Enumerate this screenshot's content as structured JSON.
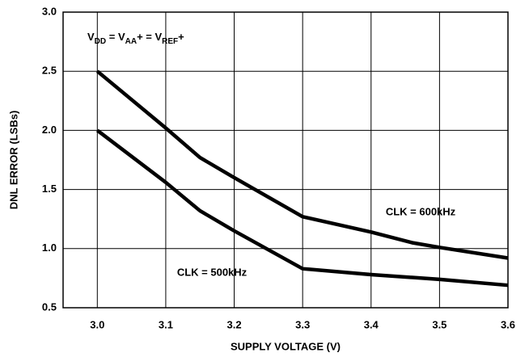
{
  "chart_data": {
    "type": "line",
    "xlabel": "SUPPLY VOLTAGE (V)",
    "ylabel": "DNL ERROR (LSBs)",
    "annotation": [
      {
        "text": "V"
      },
      {
        "text": "DD",
        "sub": true
      },
      {
        "text": " = V"
      },
      {
        "text": "AA",
        "sub": true
      },
      {
        "text": "+ = V"
      },
      {
        "text": "REF",
        "sub": true
      },
      {
        "text": "+"
      }
    ],
    "xlim": [
      2.95,
      3.6
    ],
    "ylim": [
      0.5,
      3.0
    ],
    "xticks": [
      {
        "value": 3,
        "label": "3.0"
      },
      3.1,
      3.2,
      3.3,
      3.4,
      3.5,
      3.6
    ],
    "yticks": [
      0.5,
      {
        "value": 1,
        "label": "1.0"
      },
      1.5,
      {
        "value": 2,
        "label": "2.0"
      },
      2.5,
      {
        "value": 3,
        "label": "3.0"
      }
    ],
    "grid": true,
    "series": [
      {
        "name": "CLK = 600kHz",
        "color": "#000000",
        "x": [
          3.0,
          3.1,
          3.15,
          3.2,
          3.3,
          3.4,
          3.46,
          3.5,
          3.6
        ],
        "values": [
          2.5,
          2.02,
          1.77,
          1.6,
          1.27,
          1.14,
          1.05,
          1.01,
          0.92
        ]
      },
      {
        "name": "CLK = 500kHz",
        "color": "#000000",
        "x": [
          3.0,
          3.1,
          3.15,
          3.2,
          3.3,
          3.4,
          3.5,
          3.6
        ],
        "values": [
          2.0,
          1.56,
          1.32,
          1.15,
          0.83,
          0.78,
          0.74,
          0.69
        ]
      }
    ]
  }
}
